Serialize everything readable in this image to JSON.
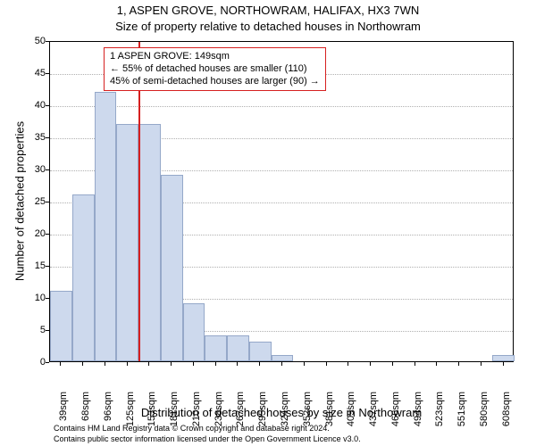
{
  "chart": {
    "type": "histogram",
    "title_main": "1, ASPEN GROVE, NORTHOWRAM, HALIFAX, HX3 7WN",
    "title_sub": "Size of property relative to detached houses in Northowram",
    "title_fontsize": 13,
    "background_color": "#ffffff",
    "plot_border_color": "#000000",
    "grid_color": "#b0b0b0",
    "bar_fill_color": "#cdd9ed",
    "bar_border_color": "#95a8c9",
    "marker_color": "#d62020",
    "marker_x_category_index": 4,
    "y_axis": {
      "label": "Number of detached properties",
      "min": 0,
      "max": 50,
      "tick_step": 5,
      "ticks": [
        0,
        5,
        10,
        15,
        20,
        25,
        30,
        35,
        40,
        45,
        50
      ],
      "label_fontsize": 13,
      "tick_fontsize": 11
    },
    "x_axis": {
      "label": "Distribution of detached houses by size in Northowram",
      "categories": [
        "39sqm",
        "68sqm",
        "96sqm",
        "125sqm",
        "153sqm",
        "181sqm",
        "210sqm",
        "238sqm",
        "267sqm",
        "295sqm",
        "324sqm",
        "352sqm",
        "381sqm",
        "409sqm",
        "437sqm",
        "466sqm",
        "494sqm",
        "523sqm",
        "551sqm",
        "580sqm",
        "608sqm"
      ],
      "label_fontsize": 13,
      "tick_fontsize": 11,
      "tick_rotation_deg": 90
    },
    "values": [
      11,
      26,
      42,
      37,
      37,
      29,
      9,
      4,
      4,
      3,
      1,
      0,
      0,
      0,
      0,
      0,
      0,
      0,
      0,
      0,
      1
    ],
    "bar_width_ratio": 1.0,
    "annotation": {
      "border_color": "#d62020",
      "background_color": "#ffffff",
      "fontsize": 11,
      "line1": "1 ASPEN GROVE: 149sqm",
      "line2": "← 55% of detached houses are smaller (110)",
      "line3": "45% of semi-detached houses are larger (90) →"
    },
    "footer": {
      "fontsize": 9,
      "line1": "Contains HM Land Registry data © Crown copyright and database right 2024.",
      "line2": "Contains public sector information licensed under the Open Government Licence v3.0."
    }
  }
}
